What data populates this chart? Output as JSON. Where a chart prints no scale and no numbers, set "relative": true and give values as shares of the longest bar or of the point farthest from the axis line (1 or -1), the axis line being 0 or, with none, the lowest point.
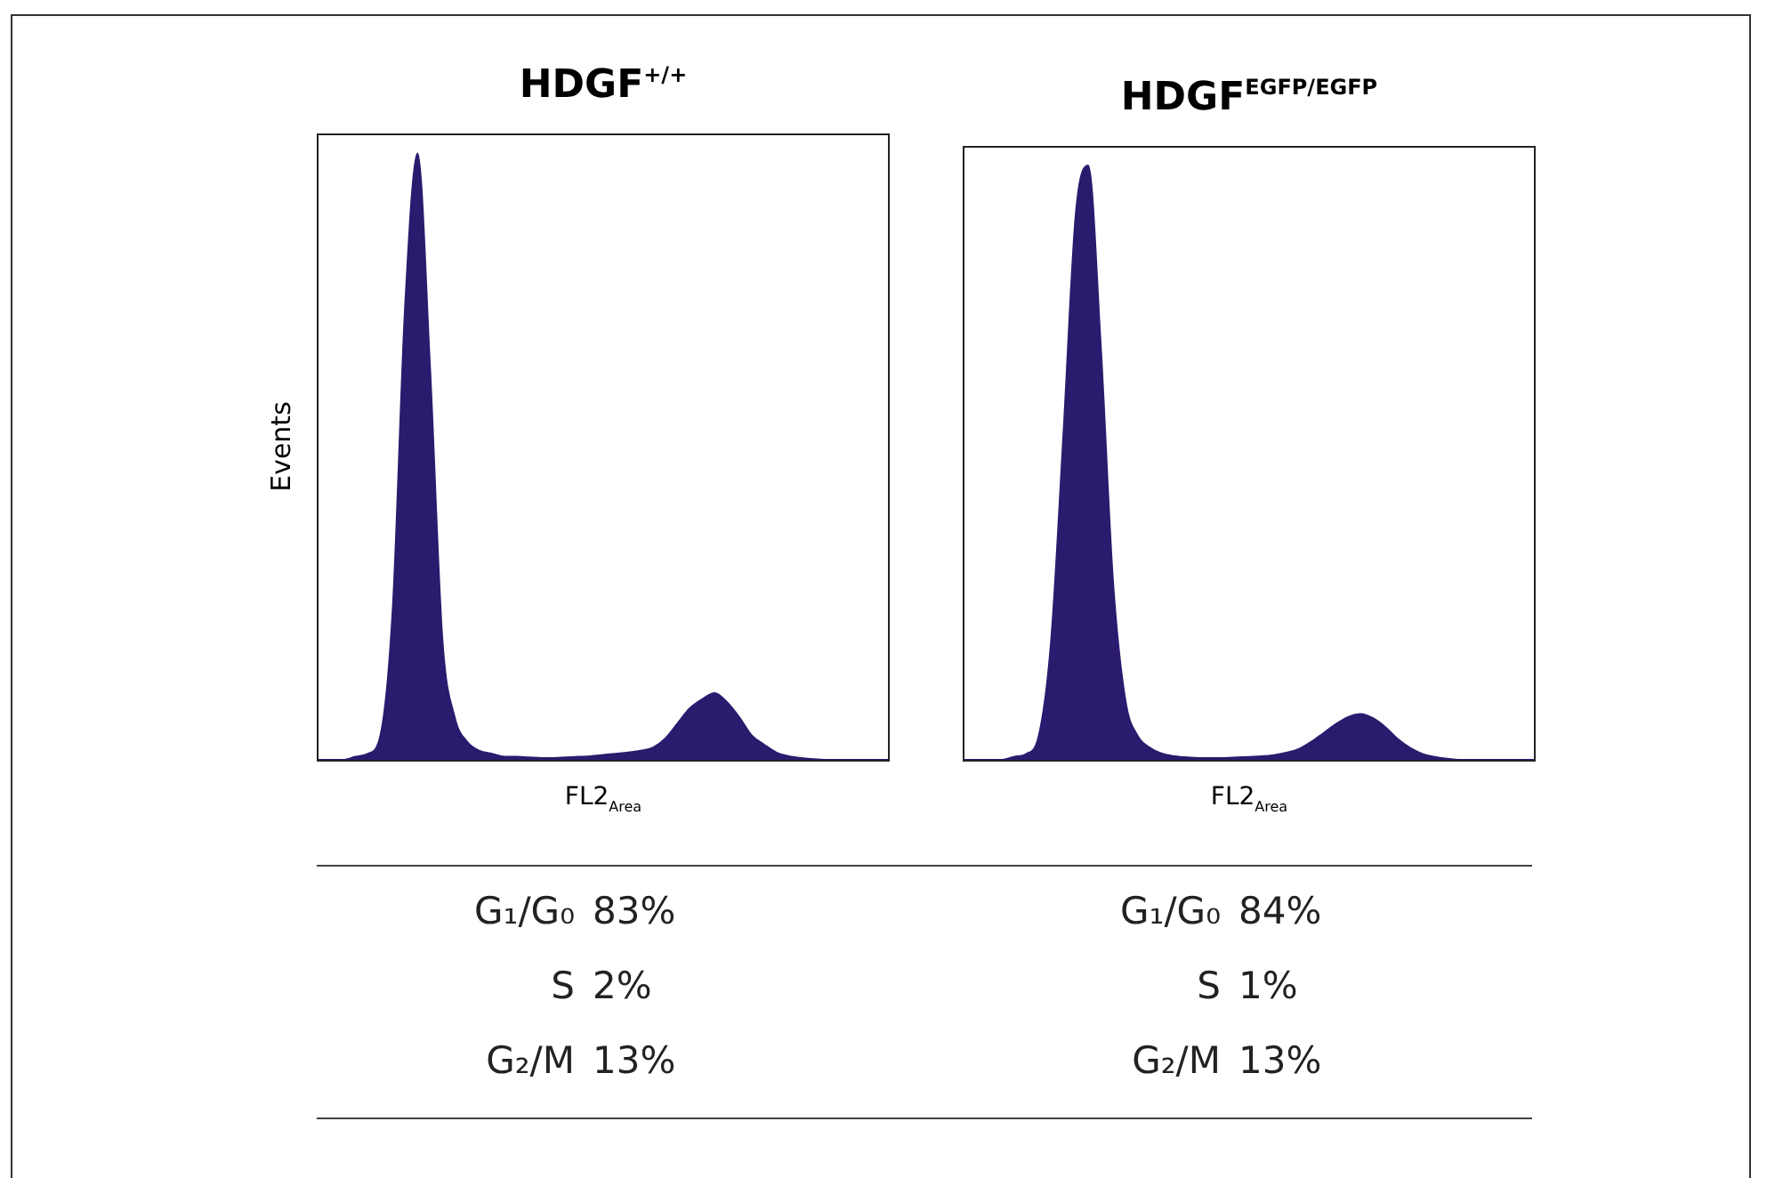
{
  "chart_data": [
    {
      "type": "area",
      "title": "HDGF$^{+/+}$",
      "xlabel": "FL2$_{Area}$",
      "ylabel": "Events",
      "relative": true,
      "tick_labels": false,
      "grid": false,
      "legend": false,
      "categories": [
        null,
        null,
        null,
        null,
        null,
        null,
        null,
        null,
        null,
        null,
        null,
        null,
        null,
        null,
        null,
        null,
        null,
        null,
        null,
        null,
        null,
        null,
        null,
        null,
        null,
        null,
        null,
        null,
        null,
        null,
        null,
        null,
        null,
        null,
        null,
        null,
        null,
        null,
        null,
        null,
        null,
        null,
        null,
        null,
        null,
        null,
        null
      ],
      "series": [
        {
          "color": "#2b1b6e",
          "values": [
            0,
            0,
            0,
            0.005,
            0.01,
            0.04,
            0.25,
            0.75,
            1,
            0.65,
            0.2,
            0.07,
            0.03,
            0.015,
            0.01,
            0.005,
            0.005,
            0.004,
            0.003,
            0.003,
            0.004,
            0.005,
            0.006,
            0.008,
            0.01,
            0.012,
            0.015,
            0.02,
            0.035,
            0.06,
            0.085,
            0.1,
            0.11,
            0.095,
            0.07,
            0.04,
            0.025,
            0.012,
            0.006,
            0.003,
            0.001,
            0,
            0,
            0,
            0,
            0,
            0
          ]
        }
      ],
      "annotations": [
        "G₁/G₀ 83%",
        "S 2%",
        "G₂/M 13%"
      ]
    },
    {
      "type": "area",
      "title": "HDGF$^{EGFP/EGFP}$",
      "xlabel": "FL2$_{Area}$",
      "relative": true,
      "tick_labels": false,
      "grid": false,
      "legend": false,
      "categories": [
        null,
        null,
        null,
        null,
        null,
        null,
        null,
        null,
        null,
        null,
        null,
        null,
        null,
        null,
        null,
        null,
        null,
        null,
        null,
        null,
        null,
        null,
        null,
        null,
        null,
        null,
        null,
        null,
        null,
        null,
        null,
        null,
        null,
        null,
        null,
        null,
        null,
        null,
        null,
        null,
        null,
        null,
        null,
        null,
        null,
        null,
        null
      ],
      "series": [
        {
          "color": "#2b1b6e",
          "values": [
            0,
            0,
            0,
            0,
            0.005,
            0.01,
            0.04,
            0.2,
            0.55,
            0.92,
            1,
            0.7,
            0.3,
            0.1,
            0.04,
            0.02,
            0.01,
            0.006,
            0.004,
            0.003,
            0.003,
            0.003,
            0.004,
            0.005,
            0.006,
            0.008,
            0.012,
            0.018,
            0.03,
            0.045,
            0.06,
            0.072,
            0.077,
            0.07,
            0.055,
            0.035,
            0.02,
            0.01,
            0.005,
            0.002,
            0,
            0,
            0,
            0,
            0,
            0,
            0
          ]
        }
      ],
      "annotations": [
        "G₁/G₀ 84%",
        "S 1%",
        "G₂/M 13%"
      ]
    }
  ]
}
